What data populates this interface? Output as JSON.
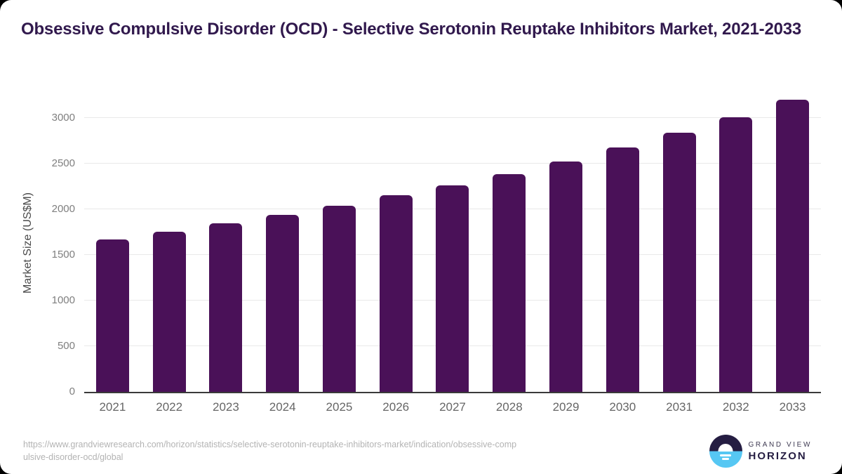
{
  "chart_data": {
    "type": "bar",
    "title": "Obsessive Compulsive Disorder (OCD) - Selective Serotonin Reuptake Inhibitors Market, 2021-2033",
    "categories": [
      "2021",
      "2022",
      "2023",
      "2024",
      "2025",
      "2026",
      "2027",
      "2028",
      "2029",
      "2030",
      "2031",
      "2032",
      "2033"
    ],
    "values": [
      1670,
      1755,
      1845,
      1940,
      2040,
      2150,
      2265,
      2385,
      2520,
      2675,
      2840,
      3010,
      3200
    ],
    "xlabel": "",
    "ylabel": "Market Size (US$M)",
    "ylim": [
      0,
      3254
    ],
    "yticks": [
      0,
      500,
      1000,
      1500,
      2000,
      2500,
      3000
    ],
    "grid": true,
    "legend": "none",
    "bar_color": "#4a1158"
  },
  "footer": {
    "url_lines": [
      "https://www.grandviewresearch.com/horizon/statistics/selective-serotonin-reuptake-inhibitors-market/indication/obsessive-comp",
      "ulsive-disorder-ocd/global"
    ],
    "logo": {
      "top": "GRAND VIEW",
      "bottom": "HORIZON"
    }
  },
  "colors": {
    "bar": "#4a1158",
    "title": "#31194d",
    "logo_dark": "#251d42",
    "logo_blue": "#56c7f3"
  }
}
